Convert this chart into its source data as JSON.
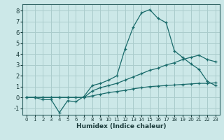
{
  "xlabel": "Humidex (Indice chaleur)",
  "xlim": [
    -0.5,
    23.5
  ],
  "ylim": [
    -1.6,
    8.6
  ],
  "bg_color": "#cce8e8",
  "grid_color": "#aacccc",
  "line_color": "#1a6b6b",
  "line1": [
    0,
    0,
    -0.2,
    -0.2,
    -1.4,
    -0.3,
    -0.4,
    0.1,
    1.1,
    1.3,
    1.6,
    2.0,
    4.5,
    6.5,
    7.8,
    8.1,
    7.3,
    6.9,
    4.3,
    3.7,
    3.1,
    2.6,
    1.5,
    1.1
  ],
  "line2": [
    0,
    0,
    0,
    0,
    0,
    0,
    0,
    0,
    0.6,
    0.9,
    1.1,
    1.3,
    1.6,
    1.9,
    2.2,
    2.5,
    2.7,
    3.0,
    3.2,
    3.5,
    3.7,
    3.9,
    3.5,
    3.3
  ],
  "line3": [
    0,
    0,
    0,
    0,
    0,
    0,
    0,
    0,
    0.15,
    0.3,
    0.45,
    0.55,
    0.65,
    0.8,
    0.9,
    1.0,
    1.05,
    1.1,
    1.15,
    1.2,
    1.25,
    1.3,
    1.3,
    1.35
  ],
  "xticks": [
    0,
    1,
    2,
    3,
    4,
    5,
    6,
    7,
    8,
    9,
    10,
    11,
    12,
    13,
    14,
    15,
    16,
    17,
    18,
    19,
    20,
    21,
    22,
    23
  ],
  "yticks": [
    -1,
    0,
    1,
    2,
    3,
    4,
    5,
    6,
    7,
    8
  ]
}
